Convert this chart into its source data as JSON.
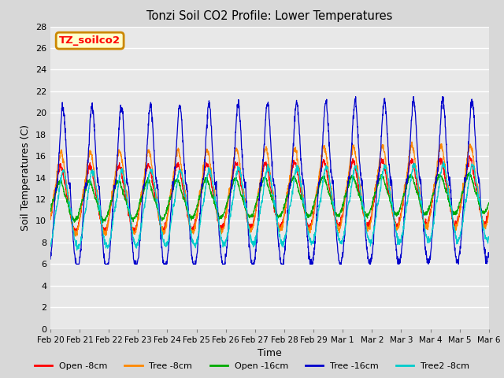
{
  "title": "Tonzi Soil CO2 Profile: Lower Temperatures",
  "xlabel": "Time",
  "ylabel": "Soil Temperatures (C)",
  "ylim": [
    0,
    28
  ],
  "yticks": [
    0,
    2,
    4,
    6,
    8,
    10,
    12,
    14,
    16,
    18,
    20,
    22,
    24,
    26,
    28
  ],
  "fig_facecolor": "#d8d8d8",
  "plot_facecolor": "#e8e8e8",
  "grid_color": "#ffffff",
  "legend_label": "TZ_soilco2",
  "legend_bg": "#ffffcc",
  "legend_border": "#cc8800",
  "series": [
    {
      "label": "Open -8cm",
      "color": "#ff0000",
      "base": 12.0,
      "amp": 3.0,
      "phase": 0.65,
      "noise": 0.15
    },
    {
      "label": "Tree -8cm",
      "color": "#ff8800",
      "base": 12.5,
      "amp": 3.8,
      "phase": 0.7,
      "noise": 0.15
    },
    {
      "label": "Open -16cm",
      "color": "#00aa00",
      "base": 11.8,
      "amp": 1.8,
      "phase": 0.5,
      "noise": 0.1
    },
    {
      "label": "Tree -16cm",
      "color": "#0000cc",
      "base": 13.0,
      "amp": 7.5,
      "phase": 1.1,
      "noise": 0.2
    },
    {
      "label": "Tree2 -8cm",
      "color": "#00cccc",
      "base": 11.0,
      "amp": 3.5,
      "phase": 1.2,
      "noise": 0.15
    }
  ],
  "xtick_labels": [
    "Feb 20",
    "Feb 21",
    "Feb 22",
    "Feb 23",
    "Feb 24",
    "Feb 25",
    "Feb 26",
    "Feb 27",
    "Feb 28",
    "Feb 29",
    "Mar 1",
    "Mar 2",
    "Mar 3",
    "Mar 4",
    "Mar 5",
    "Mar 6"
  ],
  "n_days": 15,
  "pts_per_day": 144
}
